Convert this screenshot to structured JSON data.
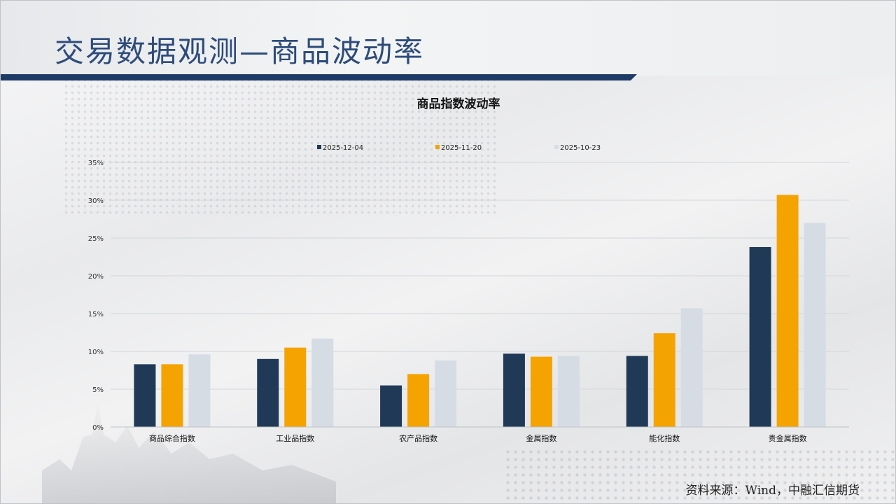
{
  "slide": {
    "title": "交易数据观测—商品波动率",
    "source": "资料来源：Wind，中融汇信期货"
  },
  "colors": {
    "title_blue": "#2e4b7a",
    "bar_navy": "#1f3956",
    "bar_orange": "#f5a300",
    "bar_lightgray": "#d6dce4"
  },
  "chart_data": {
    "type": "bar",
    "title": "商品指数波动率",
    "categories": [
      "商品综合指数",
      "工业品指数",
      "农产品指数",
      "金属指数",
      "能化指数",
      "贵金属指数"
    ],
    "series": [
      {
        "name": "2025-12-04",
        "color": "#1f3956",
        "values": [
          8.3,
          9.0,
          5.5,
          9.7,
          9.4,
          23.8
        ]
      },
      {
        "name": "2025-11-20",
        "color": "#f5a300",
        "values": [
          8.3,
          10.5,
          7.0,
          9.3,
          12.4,
          30.7
        ]
      },
      {
        "name": "2025-10-23",
        "color": "#d6dce4",
        "values": [
          9.6,
          11.7,
          8.8,
          9.4,
          15.7,
          27.0
        ]
      }
    ],
    "yticks": [
      "0%",
      "5%",
      "10%",
      "15%",
      "20%",
      "25%",
      "30%",
      "35%"
    ],
    "ylim": [
      0,
      35
    ],
    "grid": true,
    "legend": "top-center"
  }
}
